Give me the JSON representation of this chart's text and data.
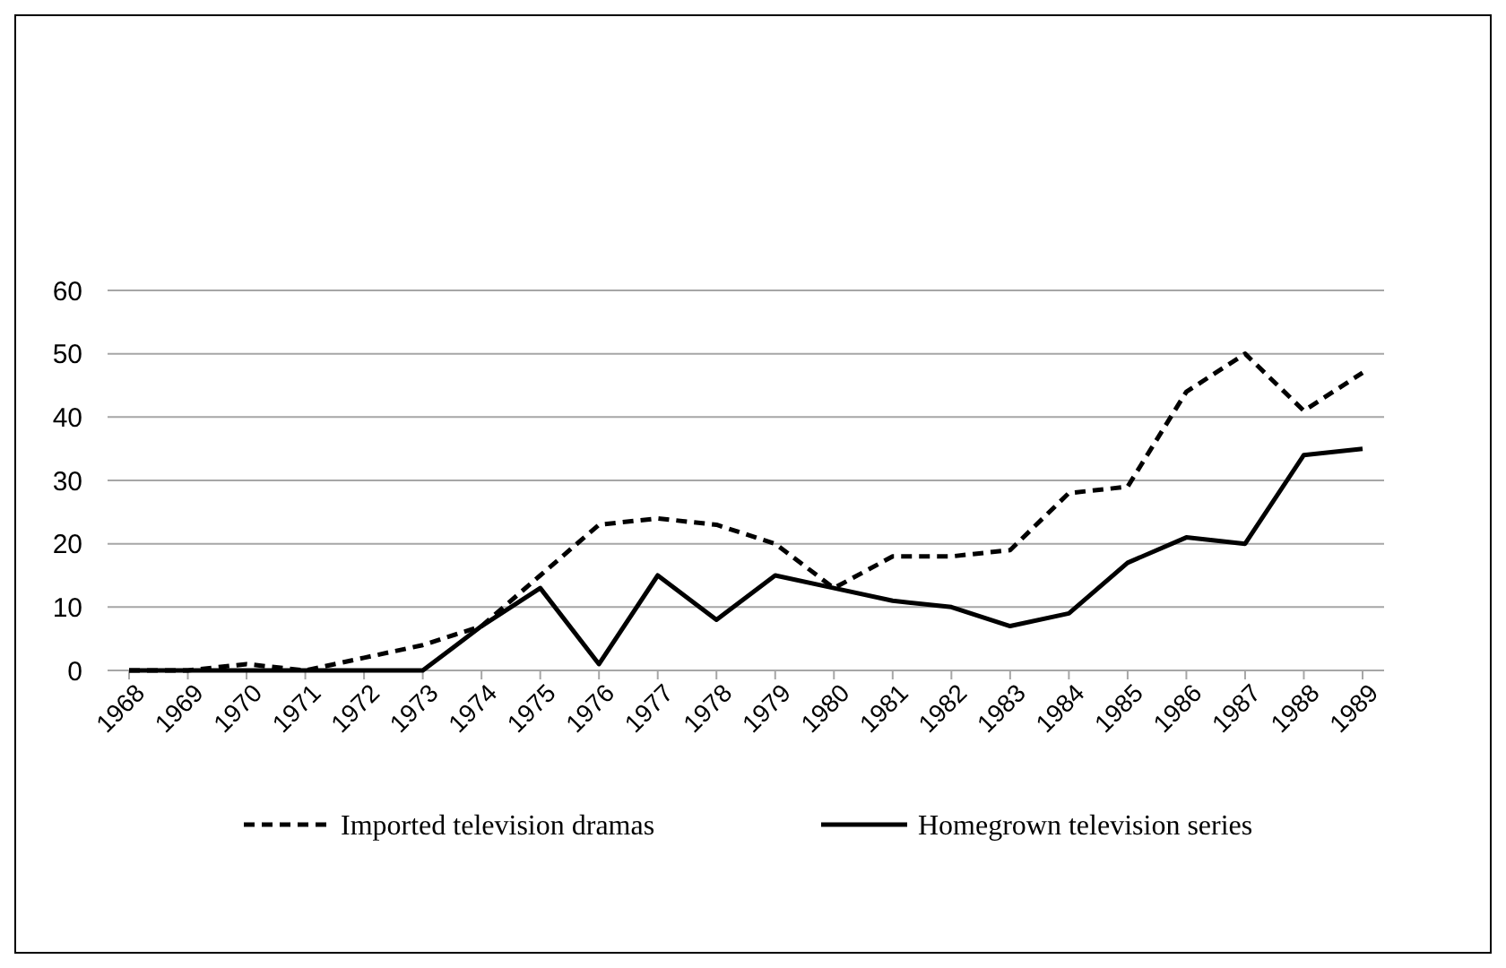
{
  "chart_data": {
    "type": "line",
    "categories": [
      "1968",
      "1969",
      "1970",
      "1971",
      "1972",
      "1973",
      "1974",
      "1975",
      "1976",
      "1977",
      "1978",
      "1979",
      "1980",
      "1981",
      "1982",
      "1983",
      "1984",
      "1985",
      "1986",
      "1987",
      "1988",
      "1989"
    ],
    "series": [
      {
        "name": "Imported television dramas",
        "color": "#000000",
        "line_style": "dashed",
        "values": [
          0,
          0,
          1,
          0,
          2,
          4,
          7,
          15,
          23,
          24,
          23,
          20,
          13,
          18,
          18,
          19,
          28,
          29,
          44,
          50,
          41,
          47
        ]
      },
      {
        "name": "Homegrown television series",
        "color": "#000000",
        "line_style": "solid",
        "values": [
          0,
          0,
          0,
          0,
          0,
          0,
          7,
          13,
          1,
          15,
          8,
          15,
          13,
          11,
          10,
          7,
          9,
          17,
          21,
          20,
          34,
          35
        ]
      }
    ],
    "ylim": [
      0,
      60
    ],
    "yticks": [
      0,
      10,
      20,
      30,
      40,
      50,
      60
    ],
    "grid": "y",
    "legend": "bottom",
    "marker": "none"
  }
}
